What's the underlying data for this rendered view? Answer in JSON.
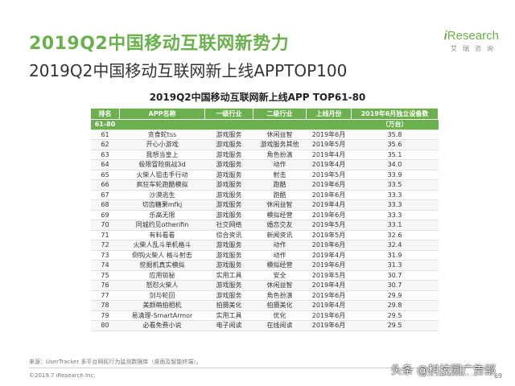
{
  "header": {
    "title": "2019Q2中国移动互联网新势力",
    "subtitle": "2019Q2中国移动互联网新上线APPTOP100"
  },
  "logo": {
    "brand_i": "i",
    "brand_rest": "Research",
    "tagline": "艾瑞咨询"
  },
  "table": {
    "title": "2019Q2中国移动互联网新上线APP TOP61-80",
    "columns": [
      "排名",
      "APP名称",
      "一级行业",
      "二级行业",
      "上线月份",
      "2019年6月独立设备数"
    ],
    "unit": "（万台）",
    "band": "61-80",
    "rows": [
      [
        "61",
        "贪食蛇tss",
        "游戏服务",
        "休闲益智",
        "2019年6月",
        "35.8"
      ],
      [
        "62",
        "开心小游戏",
        "游戏服务",
        "游戏服务其他",
        "2019年5月",
        "35.6"
      ],
      [
        "63",
        "我想当皇上",
        "游戏服务",
        "角色扮演",
        "2019年4月",
        "35.1"
      ],
      [
        "64",
        "极限冒险挑战3d",
        "游戏服务",
        "动作",
        "2019年4月",
        "34.0"
      ],
      [
        "65",
        "火柴人狙击手行动",
        "游戏服务",
        "射击",
        "2019年5月",
        "33.9"
      ],
      [
        "66",
        "疯狂车轮跑酷模拟",
        "游戏服务",
        "跑酷",
        "2019年6月",
        "33.5"
      ],
      [
        "67",
        "沙漠逃生",
        "游戏服务",
        "跑酷",
        "2019年6月",
        "33.3"
      ],
      [
        "68",
        "切齿糖果mfkj",
        "游戏服务",
        "休闲益智",
        "2019年4月",
        "33.3"
      ],
      [
        "69",
        "乐高无限",
        "游戏服务",
        "模拟经营",
        "2019年6月",
        "33.3"
      ],
      [
        "70",
        "同城约见otherifin",
        "社交网络",
        "婚恋交友",
        "2019年5月",
        "33.1"
      ],
      [
        "71",
        "有料看看",
        "综合资讯",
        "新闻资讯",
        "2019年5月",
        "32.6"
      ],
      [
        "72",
        "火柴人乱斗单机格斗",
        "游戏服务",
        "动作",
        "2019年6月",
        "32.4"
      ],
      [
        "73",
        "倒钩火柴人 格斗射击",
        "游戏服务",
        "动作",
        "2019年4月",
        "31.9"
      ],
      [
        "74",
        "挖掘机真实模拟",
        "游戏服务",
        "模拟经营",
        "2019年6月",
        "31.3"
      ],
      [
        "75",
        "应用锁秘",
        "实用工具",
        "安全",
        "2019年5月",
        "30.7"
      ],
      [
        "76",
        "怒怼火柴人",
        "游戏服务",
        "休闲益智",
        "2019年4月",
        "30.7"
      ],
      [
        "77",
        "剑与轮回",
        "游戏服务",
        "角色扮演",
        "2019年6月",
        "29.9"
      ],
      [
        "78",
        "美颜萌拍相机",
        "拍摄美化",
        "拍摄美化",
        "2019年4月",
        "29.8"
      ],
      [
        "79",
        "易清理-SmartArmor",
        "实用工具",
        "优化",
        "2019年6月",
        "29.5"
      ],
      [
        "80",
        "必看免费小说",
        "电子阅读",
        "在线阅读",
        "2019年6月",
        "29.5"
      ]
    ]
  },
  "footer": {
    "source": "来源：UserTracker 多平台网民行为监测数据库（桌面及智能终端）。",
    "copyright": "©2019.7 iResearch Inc.",
    "url": "www.iresearch.com.cn",
    "page": "69",
    "watermark": "头条 @科技园广告部"
  },
  "colors": {
    "accent": "#6ab04c",
    "header_text": "#ffffff"
  }
}
